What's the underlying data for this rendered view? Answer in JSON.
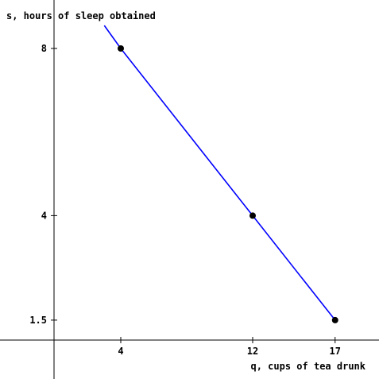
{
  "chart_data": {
    "type": "line",
    "xlabel": "q, cups of tea drunk",
    "ylabel": "s, hours of sleep obtained",
    "x_ticks": [
      4,
      12,
      17
    ],
    "y_ticks": [
      1.5,
      4,
      8
    ],
    "series": [
      {
        "color": "#0000ff",
        "x": [
          3,
          4,
          12,
          17
        ],
        "y": [
          8.55,
          8,
          4,
          1.5
        ]
      }
    ],
    "points": [
      {
        "x": 4,
        "y": 8
      },
      {
        "x": 12,
        "y": 4
      },
      {
        "x": 17,
        "y": 1.5
      }
    ],
    "axis_color": "#000000",
    "point_color": "#000000",
    "grid": false
  }
}
